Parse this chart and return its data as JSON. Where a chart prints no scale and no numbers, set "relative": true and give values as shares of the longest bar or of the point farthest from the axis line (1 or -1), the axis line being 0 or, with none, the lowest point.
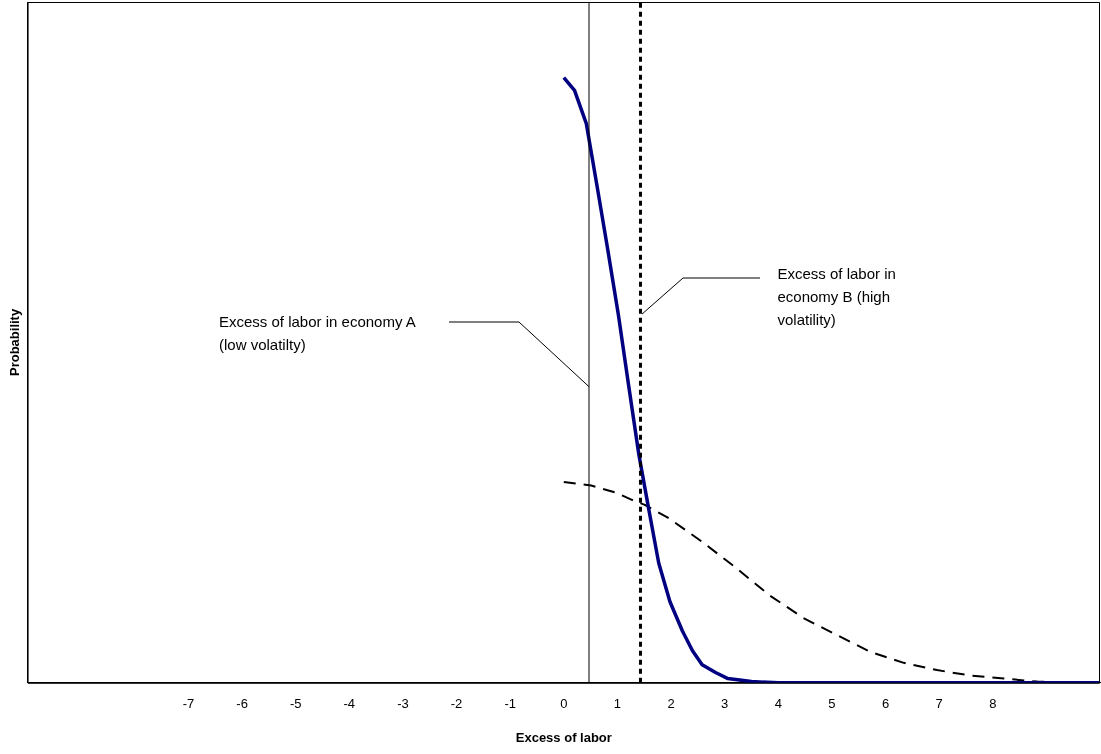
{
  "chart_data": {
    "type": "line",
    "xlabel": "Excess of labor",
    "ylabel": "Probability",
    "relative": true,
    "xlim": [
      -10,
      10
    ],
    "xticks": [
      -7,
      -6,
      -5,
      -4,
      -3,
      -2,
      -1,
      0,
      1,
      2,
      3,
      4,
      5,
      6,
      7,
      8
    ],
    "marker": "none",
    "series": [
      {
        "color": "#000080",
        "line_style": "solid",
        "x": [
          0,
          0.2,
          0.42,
          0.62,
          0.81,
          1.02,
          1.21,
          1.4,
          1.58,
          1.77,
          1.98,
          2.21,
          2.4,
          2.58,
          2.83,
          3.06,
          3.5,
          4,
          5,
          6,
          7,
          8,
          9,
          10
        ],
        "values": [
          1,
          0.979,
          0.924,
          0.821,
          0.721,
          0.607,
          0.491,
          0.377,
          0.289,
          0.198,
          0.134,
          0.086,
          0.053,
          0.03,
          0.017,
          0.007,
          0.002,
          0,
          0,
          0,
          0,
          0,
          0,
          0
        ]
      },
      {
        "color": "#000000",
        "line_style": "dashed",
        "x": [
          0,
          0.51,
          0.98,
          1.28,
          1.51,
          1.94,
          2.58,
          3.21,
          3.83,
          4.47,
          5.09,
          5.72,
          6.34,
          6.96,
          7.58,
          8.21,
          8.83,
          10
        ],
        "values": [
          0.332,
          0.326,
          0.314,
          0.302,
          0.294,
          0.273,
          0.233,
          0.19,
          0.145,
          0.107,
          0.079,
          0.051,
          0.033,
          0.021,
          0.012,
          0.007,
          0.002,
          0
        ]
      }
    ],
    "ref_lines": [
      {
        "axis": "x",
        "value": 0.47,
        "color": "#000000",
        "line_style": "solid"
      },
      {
        "axis": "x",
        "value": 1.43,
        "color": "#000000",
        "line_style": "dashed"
      }
    ],
    "annotations": [
      "Excess of labor in economy A (low volatilty)",
      "Excess of labor in economy B (high volatility)"
    ]
  }
}
